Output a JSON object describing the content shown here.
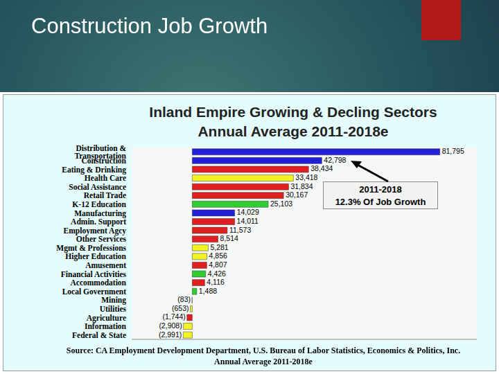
{
  "header": {
    "title": "Construction Job Growth"
  },
  "chart_data": {
    "type": "bar",
    "orientation": "horizontal",
    "title": "Inland Empire Growing & Decling Sectors",
    "subtitle": "Annual Average 2011-2018e",
    "annotations": [
      "2011-2018",
      "12.3% Of Job Growth"
    ],
    "source": [
      "Source: CA Employment Development Department, U.S. Bureau of Labor Statistics, Economics & Politics, Inc.",
      "Annual Average 2011-2018e"
    ],
    "categories": [
      "Distribution & Transportation",
      "Construction",
      "Eating & Drinking",
      "Health Care",
      "Social Assistance",
      "Retail Trade",
      "K-12 Education",
      "Manufacturing",
      "Admin. Support",
      "Employment Agcy",
      "Other Services",
      "Mgmt & Professions",
      "Higher Education",
      "Amusement",
      "Financial Activities",
      "Accommodation",
      "Local Government",
      "Mining",
      "Utilities",
      "Agriculture",
      "Information",
      "Federal & State"
    ],
    "values": [
      81795,
      42798,
      38434,
      33418,
      31834,
      30167,
      25103,
      14029,
      14011,
      11573,
      8514,
      5281,
      4856,
      4807,
      4426,
      4116,
      1488,
      -83,
      -653,
      -1744,
      -2908,
      -2991
    ],
    "value_labels": [
      "81,795",
      "42,798",
      "38,434",
      "33,418",
      "31,834",
      "30,167",
      "25,103",
      "14,029",
      "14,011",
      "11,573",
      "8,514",
      "5,281",
      "4,856",
      "4,807",
      "4,426",
      "4,116",
      "1,488",
      "(83)",
      "(653)",
      "(1,744)",
      "(2,908)",
      "(2,991)"
    ],
    "colors": [
      "#2020d8",
      "#2020d8",
      "#e02020",
      "#f2f224",
      "#e02020",
      "#e02020",
      "#33cc33",
      "#2020d8",
      "#e02020",
      "#e02020",
      "#e02020",
      "#f2f224",
      "#f2f224",
      "#e02020",
      "#33cc33",
      "#e02020",
      "#33cc33",
      "#f2f224",
      "#f2f224",
      "#e02020",
      "#f2f224",
      "#f2f224"
    ],
    "xlim": [
      -20000,
      94000
    ],
    "data_labels": true,
    "tick_labels": "y"
  }
}
